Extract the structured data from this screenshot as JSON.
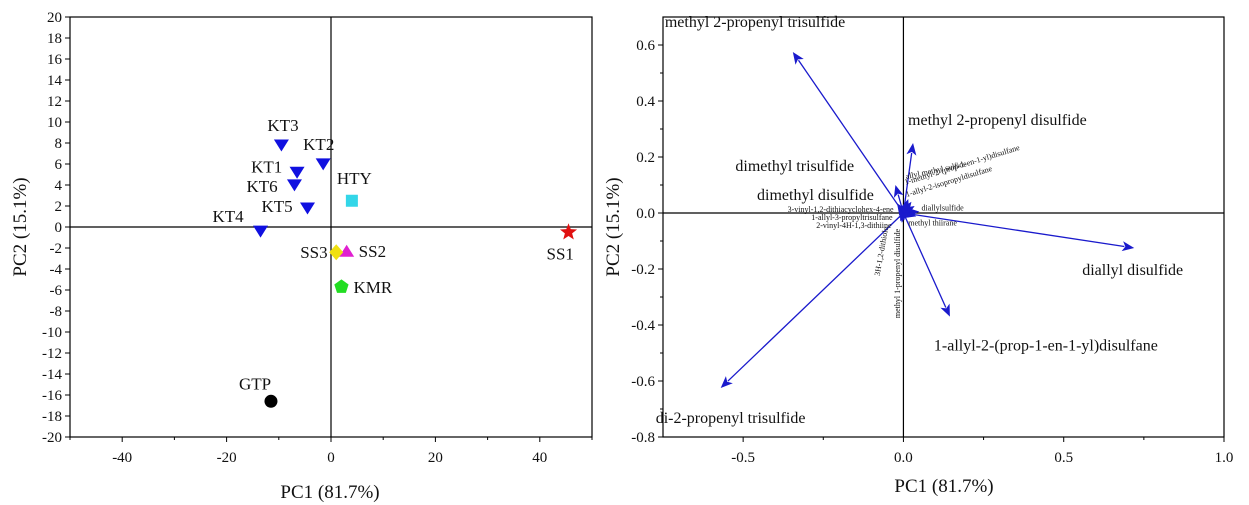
{
  "chart_data": [
    {
      "type": "scatter",
      "xlabel": "PC1 (81.7%)",
      "ylabel": "PC2 (15.1%)",
      "xlim": [
        -50,
        50
      ],
      "ylim": [
        -20,
        20
      ],
      "xticks": [
        -40,
        -20,
        0,
        20,
        40
      ],
      "yticks": [
        -20,
        -18,
        -16,
        -14,
        -12,
        -10,
        -8,
        -6,
        -4,
        -2,
        0,
        2,
        4,
        6,
        8,
        10,
        12,
        14,
        16,
        18,
        20
      ],
      "grid": false,
      "points": [
        {
          "label": "KT3",
          "x": -9.5,
          "y": 7.8,
          "marker": "triangle-down",
          "color": "#1010e0"
        },
        {
          "label": "KT2",
          "x": -1.5,
          "y": 6.0,
          "marker": "triangle-down",
          "color": "#1010e0"
        },
        {
          "label": "KT1",
          "x": -6.5,
          "y": 5.2,
          "marker": "triangle-down",
          "color": "#1010e0"
        },
        {
          "label": "KT6",
          "x": -7.0,
          "y": 4.0,
          "marker": "triangle-down",
          "color": "#1010e0"
        },
        {
          "label": "KT5",
          "x": -4.5,
          "y": 1.8,
          "marker": "triangle-down",
          "color": "#1010e0"
        },
        {
          "label": "KT4",
          "x": -13.5,
          "y": -0.4,
          "marker": "triangle-down",
          "color": "#1010e0"
        },
        {
          "label": "HTY",
          "x": 4.0,
          "y": 2.5,
          "marker": "square",
          "color": "#33d6e8"
        },
        {
          "label": "SS1",
          "x": 45.5,
          "y": -0.5,
          "marker": "star",
          "color": "#e01010"
        },
        {
          "label": "SS2",
          "x": 3.0,
          "y": -2.3,
          "marker": "triangle-up",
          "color": "#e020d0"
        },
        {
          "label": "SS3",
          "x": 1.0,
          "y": -2.4,
          "marker": "diamond",
          "color": "#f0e010"
        },
        {
          "label": "KMR",
          "x": 2.0,
          "y": -5.7,
          "marker": "pentagon",
          "color": "#22dd22"
        },
        {
          "label": "GTP",
          "x": -11.5,
          "y": -16.6,
          "marker": "circle",
          "color": "#000000"
        }
      ]
    },
    {
      "type": "biplot-loadings",
      "xlabel": "PC1 (81.7%)",
      "ylabel": "PC2 (15.1%)",
      "xlim": [
        -0.75,
        1.0
      ],
      "ylim": [
        -0.8,
        0.7
      ],
      "xticks": [
        -0.5,
        0.0,
        0.5,
        1.0
      ],
      "xtick_labels": [
        "-0.5",
        "0.0",
        "0.5",
        "1.0"
      ],
      "yticks": [
        -0.8,
        -0.6,
        -0.4,
        -0.2,
        0.0,
        0.2,
        0.4,
        0.6
      ],
      "ytick_labels": [
        "-0.8",
        "-0.6",
        "-0.4",
        "-0.2",
        "0.0",
        "0.2",
        "0.4",
        "0.6"
      ],
      "grid": false,
      "arrow_color": "#1a1acc",
      "vectors": [
        {
          "label": "methyl 2-propenyl trisulfide",
          "x": -0.345,
          "y": 0.575
        },
        {
          "label": "methyl 2-propenyl disulfide",
          "x": 0.03,
          "y": 0.25
        },
        {
          "label": "dimethyl trisulfide",
          "x": -0.025,
          "y": 0.1
        },
        {
          "label": "dimethyl disulfide",
          "x": -0.02,
          "y": 0.035
        },
        {
          "label": "diallyl disulfide",
          "x": 0.72,
          "y": -0.125
        },
        {
          "label": "1-allyl-2-(prop-1-en-1-yl)disulfane",
          "x": 0.145,
          "y": -0.37
        },
        {
          "label": "di-2-propenyl trisulfide",
          "x": -0.57,
          "y": -0.625
        },
        {
          "label": "allyl methyl sulfide",
          "x": 0.015,
          "y": 0.05
        },
        {
          "label": "1-methyl-2-(prop-1-en-1-yl)disulfane",
          "x": 0.025,
          "y": 0.04
        },
        {
          "label": "1-allyl-2-isopropyldisulfane",
          "x": 0.035,
          "y": 0.025
        },
        {
          "label": "diallylsulfide",
          "x": 0.05,
          "y": 0.005
        },
        {
          "label": "methyl thiirane",
          "x": 0.04,
          "y": -0.012
        },
        {
          "label": "3-vinyl-1,2-dithiacyclohex-4-ene",
          "x": -0.015,
          "y": 0.015
        },
        {
          "label": "1-allyl-3-propyltrisulfane",
          "x": -0.015,
          "y": -0.008
        },
        {
          "label": "2-vinyl-4H-1,3-dithiine",
          "x": -0.012,
          "y": -0.018
        },
        {
          "label": "3H-1,2-dithiole",
          "x": -0.01,
          "y": -0.03
        },
        {
          "label": "methyl 1-propenyl disulfide",
          "x": -0.005,
          "y": -0.035
        }
      ]
    }
  ]
}
